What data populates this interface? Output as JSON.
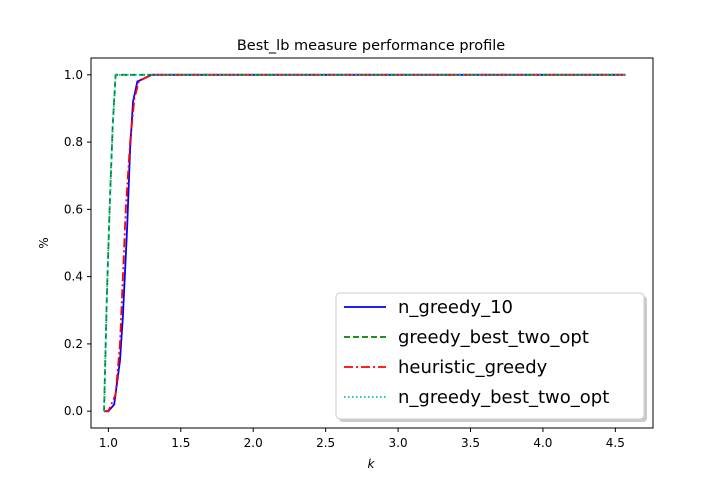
{
  "chart_data": {
    "type": "line",
    "title": "Best_lb measure performance profile",
    "xlabel": "k",
    "ylabel": "%",
    "xlim": [
      0.88,
      4.76
    ],
    "ylim": [
      -0.05,
      1.05
    ],
    "xticks": [
      1.0,
      1.5,
      2.0,
      2.5,
      3.0,
      3.5,
      4.0,
      4.5
    ],
    "xtick_labels": [
      "1.0",
      "1.5",
      "2.0",
      "2.5",
      "3.0",
      "3.5",
      "4.0",
      "4.5"
    ],
    "yticks": [
      0.0,
      0.2,
      0.4,
      0.6,
      0.8,
      1.0
    ],
    "ytick_labels": [
      "0.0",
      "0.2",
      "0.4",
      "0.6",
      "0.8",
      "1.0"
    ],
    "grid": false,
    "legend_position": "lower-right",
    "series": [
      {
        "name": "n_greedy_10",
        "color": "#0000ff",
        "style": "solid",
        "x": [
          0.97,
          1.0,
          1.04,
          1.08,
          1.1,
          1.13,
          1.15,
          1.17,
          1.2,
          1.25,
          1.3,
          1.35,
          4.57
        ],
        "y": [
          0.0,
          0.0,
          0.02,
          0.15,
          0.28,
          0.55,
          0.78,
          0.92,
          0.98,
          0.99,
          1.0,
          1.0,
          1.0
        ]
      },
      {
        "name": "greedy_best_two_opt",
        "color": "#008000",
        "style": "dashed",
        "x": [
          0.97,
          0.99,
          1.01,
          1.03,
          1.05,
          1.07,
          4.57
        ],
        "y": [
          0.0,
          0.35,
          0.62,
          0.85,
          1.0,
          1.0,
          1.0
        ]
      },
      {
        "name": "heuristic_greedy",
        "color": "#ff0000",
        "style": "dashdot",
        "x": [
          0.97,
          1.0,
          1.05,
          1.08,
          1.1,
          1.12,
          1.15,
          1.18,
          1.21,
          1.25,
          1.3,
          4.57
        ],
        "y": [
          0.0,
          0.0,
          0.05,
          0.2,
          0.4,
          0.6,
          0.8,
          0.93,
          0.98,
          0.99,
          1.0,
          1.0
        ]
      },
      {
        "name": "n_greedy_best_two_opt",
        "color": "#00bfbf",
        "style": "dotted",
        "x": [
          0.97,
          0.99,
          1.01,
          1.03,
          1.05,
          1.07,
          4.57
        ],
        "y": [
          0.0,
          0.35,
          0.62,
          0.85,
          1.0,
          1.0,
          1.0
        ]
      }
    ]
  }
}
